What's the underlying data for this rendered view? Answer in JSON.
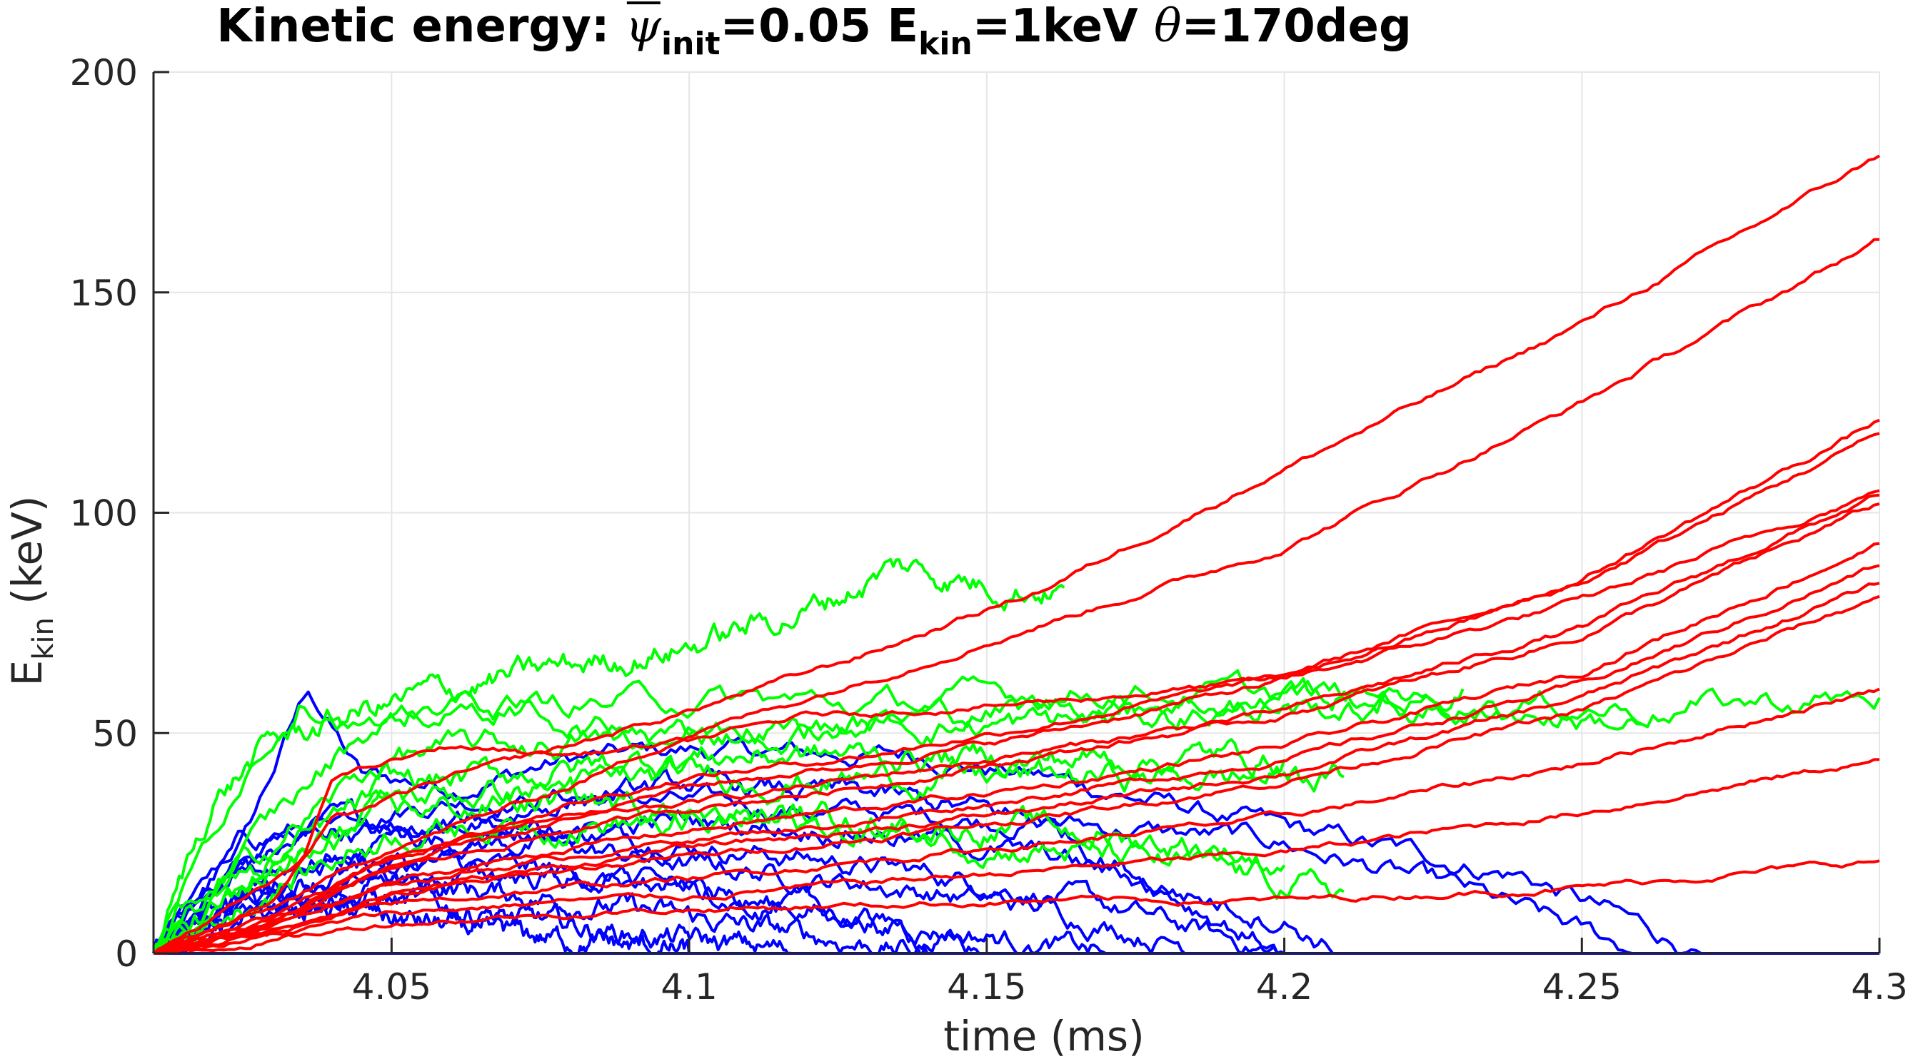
{
  "chart_data": {
    "type": "line",
    "title": {
      "prefix": "Kinetic energy: ",
      "psi_symbol": "ψ",
      "psi_subscript": "init",
      "psi_value": "=0.05 E",
      "ekin_subscript": "kin",
      "ekin_value": "=1keV ",
      "theta_symbol": "θ",
      "theta_value": "=170deg"
    },
    "xlabel": "time (ms)",
    "ylabel": {
      "main": "E",
      "sub": "kin",
      "unit": " (keV)"
    },
    "xlim": [
      4.01,
      4.3
    ],
    "ylim": [
      0,
      200
    ],
    "x_ticks": [
      {
        "value": 4.05,
        "label": "4.05"
      },
      {
        "value": 4.1,
        "label": "4.1"
      },
      {
        "value": 4.15,
        "label": "4.15"
      },
      {
        "value": 4.2,
        "label": "4.2"
      },
      {
        "value": 4.25,
        "label": "4.25"
      },
      {
        "value": 4.3,
        "label": "4.3"
      }
    ],
    "y_ticks": [
      {
        "value": 0,
        "label": "0"
      },
      {
        "value": 50,
        "label": "50"
      },
      {
        "value": 100,
        "label": "100"
      },
      {
        "value": 150,
        "label": "150"
      },
      {
        "value": 200,
        "label": "200"
      }
    ],
    "grid": true,
    "colors": {
      "red": "#ff0000",
      "green": "#00ff00",
      "blue": "#0000ff",
      "axis": "#262626",
      "grid": "#e6e6e6"
    },
    "series": [
      {
        "name": "red-1",
        "color": "red",
        "noise": 0.6,
        "x": [
          4.01,
          4.03,
          4.04,
          4.06,
          4.08,
          4.1,
          4.13,
          4.16,
          4.2,
          4.25,
          4.3
        ],
        "y": [
          0,
          12,
          30,
          40,
          47,
          55,
          68,
          83,
          110,
          143,
          181
        ]
      },
      {
        "name": "red-2",
        "color": "red",
        "noise": 0.6,
        "x": [
          4.01,
          4.03,
          4.05,
          4.08,
          4.1,
          4.13,
          4.16,
          4.2,
          4.25,
          4.3
        ],
        "y": [
          0,
          10,
          24,
          38,
          50,
          62,
          75,
          92,
          125,
          162
        ]
      },
      {
        "name": "red-3",
        "color": "red",
        "noise": 0.6,
        "x": [
          4.01,
          4.03,
          4.05,
          4.08,
          4.1,
          4.13,
          4.16,
          4.2,
          4.25,
          4.3
        ],
        "y": [
          0,
          8,
          22,
          34,
          40,
          45,
          52,
          63,
          85,
          121
        ]
      },
      {
        "name": "red-4",
        "color": "red",
        "noise": 0.6,
        "x": [
          4.01,
          4.03,
          4.05,
          4.08,
          4.1,
          4.13,
          4.16,
          4.2,
          4.25,
          4.3
        ],
        "y": [
          0,
          8,
          22,
          32,
          38,
          43,
          50,
          62,
          84,
          118
        ]
      },
      {
        "name": "red-5",
        "color": "red",
        "noise": 0.6,
        "x": [
          4.01,
          4.03,
          4.05,
          4.08,
          4.1,
          4.13,
          4.16,
          4.2,
          4.25,
          4.3
        ],
        "y": [
          0,
          7,
          20,
          30,
          34,
          40,
          46,
          55,
          74,
          104
        ]
      },
      {
        "name": "red-6",
        "color": "red",
        "noise": 0.6,
        "x": [
          4.01,
          4.03,
          4.05,
          4.08,
          4.1,
          4.13,
          4.16,
          4.2,
          4.25,
          4.3
        ],
        "y": [
          0,
          7,
          19,
          28,
          33,
          38,
          45,
          54,
          72,
          102
        ]
      },
      {
        "name": "red-7",
        "color": "red",
        "noise": 0.6,
        "x": [
          4.01,
          4.03,
          4.05,
          4.08,
          4.1,
          4.13,
          4.16,
          4.2,
          4.25,
          4.3
        ],
        "y": [
          0,
          6,
          16,
          24,
          28,
          33,
          38,
          47,
          64,
          93
        ]
      },
      {
        "name": "red-8",
        "color": "red",
        "noise": 0.6,
        "x": [
          4.01,
          4.03,
          4.05,
          4.08,
          4.1,
          4.13,
          4.16,
          4.2,
          4.25,
          4.3
        ],
        "y": [
          0,
          6,
          16,
          22,
          26,
          30,
          36,
          44,
          61,
          88
        ]
      },
      {
        "name": "red-9",
        "color": "red",
        "noise": 0.6,
        "x": [
          4.01,
          4.03,
          4.05,
          4.08,
          4.1,
          4.13,
          4.16,
          4.2,
          4.25,
          4.3
        ],
        "y": [
          0,
          5,
          14,
          20,
          24,
          28,
          33,
          41,
          58,
          84
        ]
      },
      {
        "name": "red-10",
        "color": "red",
        "noise": 0.6,
        "x": [
          4.01,
          4.03,
          4.05,
          4.08,
          4.1,
          4.13,
          4.16,
          4.2,
          4.25,
          4.3
        ],
        "y": [
          0,
          5,
          13,
          19,
          22,
          26,
          31,
          39,
          55,
          81
        ]
      },
      {
        "name": "red-11",
        "color": "red",
        "noise": 0.6,
        "x": [
          4.01,
          4.03,
          4.05,
          4.08,
          4.1,
          4.13,
          4.16,
          4.2,
          4.25,
          4.3
        ],
        "y": [
          0,
          5,
          11,
          15,
          17,
          21,
          25,
          31,
          43,
          60
        ]
      },
      {
        "name": "red-12",
        "color": "red",
        "noise": 0.6,
        "x": [
          4.01,
          4.03,
          4.05,
          4.08,
          4.1,
          4.13,
          4.16,
          4.2,
          4.25,
          4.3
        ],
        "y": [
          0,
          4,
          9,
          12,
          13,
          16,
          19,
          23,
          32,
          44
        ]
      },
      {
        "name": "red-13",
        "color": "red",
        "noise": 0.6,
        "x": [
          4.01,
          4.03,
          4.05,
          4.08,
          4.1,
          4.13,
          4.16,
          4.2,
          4.25,
          4.3
        ],
        "y": [
          0,
          3,
          7,
          9,
          10,
          11,
          12,
          12,
          15,
          21
        ]
      },
      {
        "name": "red-14",
        "color": "red",
        "noise": 0.6,
        "x": [
          4.01,
          4.035,
          4.04,
          4.06,
          4.08,
          4.1,
          4.12,
          4.15,
          4.2,
          4.25,
          4.3
        ],
        "y": [
          0,
          20,
          40,
          47,
          45,
          48,
          54,
          56,
          62,
          80,
          105
        ]
      },
      {
        "name": "green-1",
        "color": "green",
        "noise": 2.5,
        "x": [
          4.01,
          4.02,
          4.03,
          4.045,
          4.06,
          4.08,
          4.1,
          4.12,
          4.135,
          4.15,
          4.163
        ],
        "y": [
          0,
          35,
          48,
          55,
          60,
          65,
          70,
          78,
          88,
          84,
          83
        ]
      },
      {
        "name": "green-2",
        "color": "green",
        "noise": 2.5,
        "x": [
          4.01,
          4.025,
          4.035,
          4.05,
          4.07,
          4.1,
          4.13,
          4.17,
          4.21,
          4.26,
          4.3
        ],
        "y": [
          0,
          42,
          60,
          50,
          56,
          58,
          56,
          60,
          58,
          56,
          58
        ]
      },
      {
        "name": "green-3",
        "color": "green",
        "noise": 2.5,
        "x": [
          4.01,
          4.03,
          4.045,
          4.06,
          4.09,
          4.12,
          4.15,
          4.18,
          4.21,
          4.24,
          4.26
        ],
        "y": [
          0,
          30,
          50,
          58,
          50,
          52,
          55,
          58,
          55,
          55,
          52
        ]
      },
      {
        "name": "green-4",
        "color": "green",
        "noise": 2.5,
        "x": [
          4.01,
          4.03,
          4.05,
          4.08,
          4.1,
          4.13,
          4.16,
          4.19,
          4.21,
          4.23
        ],
        "y": [
          0,
          25,
          45,
          48,
          50,
          52,
          52,
          55,
          58,
          60
        ]
      },
      {
        "name": "green-5",
        "color": "green",
        "noise": 2.5,
        "x": [
          4.01,
          4.03,
          4.05,
          4.08,
          4.1,
          4.13,
          4.16,
          4.19,
          4.2
        ],
        "y": [
          0,
          20,
          38,
          42,
          45,
          45,
          44,
          45,
          44
        ]
      },
      {
        "name": "green-6",
        "color": "green",
        "noise": 2.5,
        "x": [
          4.01,
          4.03,
          4.05,
          4.08,
          4.1,
          4.13,
          4.16,
          4.19,
          4.21
        ],
        "y": [
          0,
          20,
          35,
          38,
          40,
          40,
          40,
          40,
          40
        ]
      },
      {
        "name": "green-7",
        "color": "green",
        "noise": 2.5,
        "x": [
          4.01,
          4.03,
          4.05,
          4.08,
          4.1,
          4.13,
          4.16,
          4.19,
          4.21
        ],
        "y": [
          0,
          15,
          28,
          30,
          30,
          28,
          24,
          18,
          14
        ]
      },
      {
        "name": "green-8",
        "color": "green",
        "noise": 2.5,
        "x": [
          4.01,
          4.03,
          4.05,
          4.08,
          4.1,
          4.13,
          4.16,
          4.19,
          4.2
        ],
        "y": [
          0,
          18,
          32,
          35,
          32,
          30,
          28,
          24,
          20
        ]
      },
      {
        "name": "blue-1",
        "color": "blue",
        "noise": 2.0,
        "x": [
          4.01,
          4.025,
          4.036,
          4.045,
          4.06,
          4.08,
          4.1,
          4.12,
          4.14,
          4.16,
          4.2,
          4.24,
          4.27
        ],
        "y": [
          0,
          25,
          60,
          40,
          38,
          44,
          46,
          45,
          45,
          40,
          28,
          18,
          0
        ]
      },
      {
        "name": "blue-2",
        "color": "blue",
        "noise": 2.0,
        "x": [
          4.01,
          4.025,
          4.04,
          4.06,
          4.08,
          4.1,
          4.13,
          4.16,
          4.2,
          4.23,
          4.26
        ],
        "y": [
          0,
          20,
          32,
          35,
          36,
          34,
          32,
          30,
          25,
          14,
          0
        ]
      },
      {
        "name": "blue-3",
        "color": "blue",
        "noise": 2.0,
        "x": [
          4.01,
          4.025,
          4.04,
          4.06,
          4.08,
          4.1,
          4.13,
          4.16,
          4.2
        ],
        "y": [
          0,
          25,
          30,
          30,
          28,
          25,
          20,
          14,
          0
        ]
      },
      {
        "name": "blue-4",
        "color": "blue",
        "noise": 2.0,
        "x": [
          4.01,
          4.025,
          4.04,
          4.06,
          4.08,
          4.1,
          4.13,
          4.16,
          4.19
        ],
        "y": [
          0,
          20,
          28,
          26,
          24,
          20,
          16,
          10,
          0
        ]
      },
      {
        "name": "blue-5",
        "color": "blue",
        "noise": 2.0,
        "x": [
          4.01,
          4.025,
          4.04,
          4.06,
          4.08,
          4.1,
          4.13,
          4.17
        ],
        "y": [
          0,
          18,
          22,
          20,
          18,
          14,
          8,
          0
        ]
      },
      {
        "name": "blue-6",
        "color": "blue",
        "noise": 2.0,
        "x": [
          4.01,
          4.025,
          4.04,
          4.06,
          4.08,
          4.1,
          4.14
        ],
        "y": [
          0,
          15,
          18,
          15,
          12,
          8,
          0
        ]
      },
      {
        "name": "blue-7",
        "color": "blue",
        "noise": 2.0,
        "x": [
          4.01,
          4.025,
          4.04,
          4.06,
          4.08,
          4.12
        ],
        "y": [
          0,
          12,
          14,
          10,
          6,
          0
        ]
      },
      {
        "name": "blue-8",
        "color": "blue",
        "noise": 2.0,
        "x": [
          4.01,
          4.025,
          4.04,
          4.06,
          4.1
        ],
        "y": [
          0,
          10,
          10,
          6,
          0
        ]
      },
      {
        "name": "blue-9",
        "color": "blue",
        "noise": 2.0,
        "x": [
          4.01,
          4.03,
          4.05,
          4.08,
          4.1,
          4.13,
          4.16,
          4.2
        ],
        "y": [
          0,
          15,
          25,
          35,
          38,
          36,
          30,
          0
        ]
      },
      {
        "name": "blue-10",
        "color": "blue",
        "noise": 2.0,
        "x": [
          4.01,
          4.03,
          4.05,
          4.08,
          4.1,
          4.13,
          4.16,
          4.2,
          4.21
        ],
        "y": [
          0,
          12,
          20,
          28,
          30,
          28,
          22,
          8,
          0
        ]
      },
      {
        "name": "blue-11",
        "color": "blue",
        "noise": 2.0,
        "x": [
          4.01,
          4.03,
          4.05,
          4.07,
          4.09,
          4.12,
          4.15
        ],
        "y": [
          0,
          10,
          16,
          18,
          16,
          10,
          0
        ]
      },
      {
        "name": "blue-12",
        "color": "blue",
        "noise": 0.0,
        "x": [
          4.01,
          4.3
        ],
        "y": [
          0,
          0
        ]
      }
    ]
  }
}
